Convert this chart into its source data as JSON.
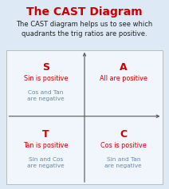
{
  "title": "The CAST Diagram",
  "title_color": "#cc0000",
  "subtitle": "The CAST diagram helps us to see which\nquadrants the trig ratios are positive.",
  "subtitle_color": "#222222",
  "background_color": "#ddeaf5",
  "box_color": "#f0f6fc",
  "box_edge_color": "#bbbbbb",
  "axes_color": "#555555",
  "red_color": "#cc0000",
  "gray_color": "#6688aa",
  "quadrants": {
    "S": {
      "letter": "S",
      "positive": "Sin is positive",
      "negative": "Cos and Tan\nare negative"
    },
    "A": {
      "letter": "A",
      "positive": "All are positive",
      "negative": ""
    },
    "T": {
      "letter": "T",
      "positive": "Tan is positive",
      "negative": "Sin and Cos\nare negative"
    },
    "C": {
      "letter": "C",
      "positive": "Cos is positive",
      "negative": "Sin and Tan\nare negative"
    }
  }
}
